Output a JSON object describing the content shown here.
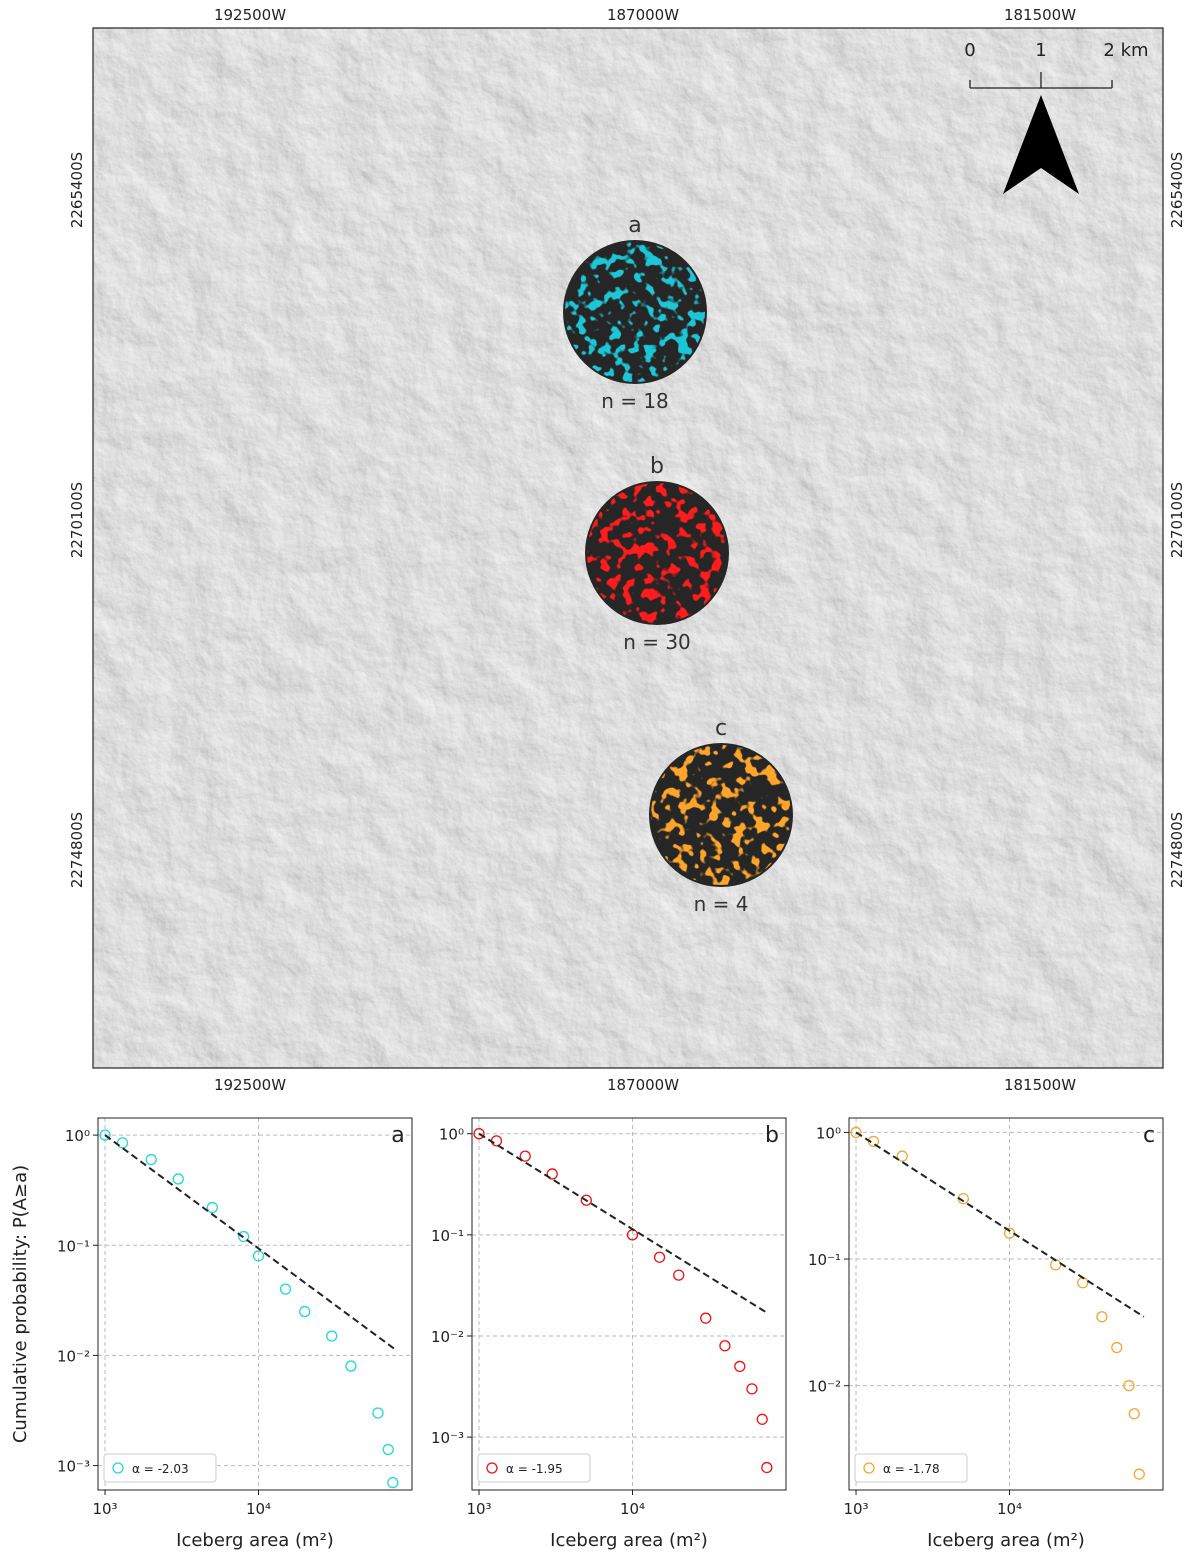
{
  "map": {
    "x_labels_top": [
      "192500W",
      "187000W",
      "181500W"
    ],
    "x_labels_bottom": [
      "192500W",
      "187000W",
      "181500W"
    ],
    "y_labels_left": [
      "2265400S",
      "2270100S",
      "2274800S"
    ],
    "y_labels_right": [
      "2265400S",
      "2270100S",
      "2274800S"
    ],
    "scale_labels": [
      "0",
      "1",
      "2 km"
    ],
    "circles": [
      {
        "label": "a",
        "count_label": "n = 18",
        "color": "#1cc6d6"
      },
      {
        "label": "b",
        "count_label": "n = 30",
        "color": "#ff1a1a"
      },
      {
        "label": "c",
        "count_label": "n = 4",
        "color": "#ffa52a"
      }
    ]
  },
  "chart_data": [
    {
      "type": "scatter",
      "panel_label": "a",
      "x_label": "Iceberg area (m²)",
      "y_label": "Cumulative probability: P(A≥a)",
      "xscale": "log",
      "yscale": "log",
      "xlim": [
        900,
        100000
      ],
      "ylim": [
        0.0006,
        1.43
      ],
      "grid": true,
      "legend": "lower left",
      "xticks": [
        {
          "value": 1000,
          "label": "10³"
        },
        {
          "value": 10000,
          "label": "10⁴"
        }
      ],
      "yticks": [
        {
          "value": 1,
          "label": "10⁰"
        },
        {
          "value": 0.1,
          "label": "10⁻¹"
        },
        {
          "value": 0.01,
          "label": "10⁻²"
        },
        {
          "value": 0.001,
          "label": "10⁻³"
        }
      ],
      "series": [
        {
          "name": "α = -2.03",
          "color": "#1fd8dc",
          "x": [
            1000,
            1300,
            2000,
            3000,
            5000,
            8000,
            10000,
            15000,
            20000,
            30000,
            40000,
            60000,
            70000,
            75000
          ],
          "values": [
            1,
            0.85,
            0.6,
            0.4,
            0.22,
            0.12,
            0.08,
            0.04,
            0.025,
            0.015,
            0.008,
            0.003,
            0.0014,
            0.0007
          ]
        }
      ],
      "fit_line": {
        "color": "#222222",
        "x": [
          1000,
          80000
        ],
        "values": [
          1,
          0.011
        ]
      }
    },
    {
      "type": "scatter",
      "panel_label": "b",
      "x_label": "Iceberg area (m²)",
      "xscale": "log",
      "yscale": "log",
      "xlim": [
        900,
        100000
      ],
      "ylim": [
        0.0003,
        1.43
      ],
      "grid": true,
      "legend": "lower left",
      "xticks": [
        {
          "value": 1000,
          "label": "10³"
        },
        {
          "value": 10000,
          "label": "10⁴"
        }
      ],
      "yticks": [
        {
          "value": 1,
          "label": "10⁰"
        },
        {
          "value": 0.1,
          "label": "10⁻¹"
        },
        {
          "value": 0.01,
          "label": "10⁻²"
        },
        {
          "value": 0.001,
          "label": "10⁻³"
        }
      ],
      "series": [
        {
          "name": "α = -1.95",
          "color": "#ee1111",
          "x": [
            1000,
            1300,
            2000,
            3000,
            5000,
            10000,
            15000,
            20000,
            30000,
            40000,
            50000,
            60000,
            70000,
            75000
          ],
          "values": [
            1,
            0.85,
            0.6,
            0.4,
            0.22,
            0.1,
            0.06,
            0.04,
            0.015,
            0.008,
            0.005,
            0.003,
            0.0015,
            0.0005
          ]
        }
      ],
      "fit_line": {
        "color": "#222222",
        "x": [
          1000,
          75000
        ],
        "values": [
          1,
          0.017
        ]
      }
    },
    {
      "type": "scatter",
      "panel_label": "c",
      "x_label": "Iceberg area (m²)",
      "xscale": "log",
      "yscale": "log",
      "xlim": [
        900,
        100000
      ],
      "ylim": [
        0.0015,
        1.3
      ],
      "grid": true,
      "legend": "lower left",
      "xticks": [
        {
          "value": 1000,
          "label": "10³"
        },
        {
          "value": 10000,
          "label": "10⁴"
        }
      ],
      "yticks": [
        {
          "value": 1,
          "label": "10⁰"
        },
        {
          "value": 0.1,
          "label": "10⁻¹"
        },
        {
          "value": 0.01,
          "label": "10⁻²"
        }
      ],
      "series": [
        {
          "name": "α = -1.78",
          "color": "#f2a630",
          "x": [
            1000,
            1300,
            2000,
            5000,
            10000,
            20000,
            30000,
            40000,
            50000,
            60000,
            65000,
            70000
          ],
          "values": [
            1,
            0.85,
            0.65,
            0.3,
            0.16,
            0.09,
            0.065,
            0.035,
            0.02,
            0.01,
            0.006,
            0.002
          ]
        }
      ],
      "fit_line": {
        "color": "#222222",
        "x": [
          1000,
          75000
        ],
        "values": [
          1,
          0.035
        ]
      }
    }
  ]
}
